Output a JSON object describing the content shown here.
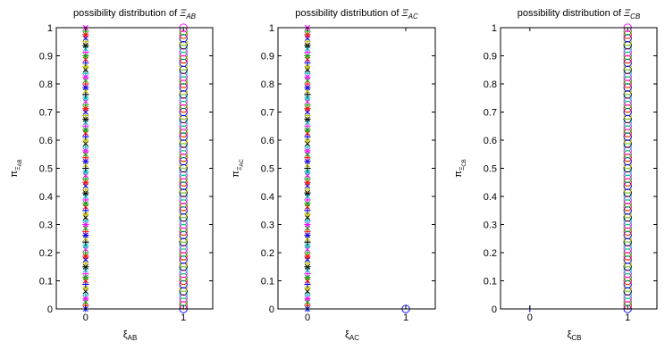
{
  "chart_data": [
    {
      "type": "scatter",
      "title_prefix": "possibility distribution of ",
      "title_symbol": "Ξ",
      "title_sub": "AB",
      "xlabel_symbol": "ξ",
      "xlabel_sub": "AB",
      "ylabel_symbol": "π",
      "ylabel_sub1": "Ξ",
      "ylabel_sub2": "AB",
      "xticks": [
        "0",
        "1"
      ],
      "yticks": [
        "0",
        "0.1",
        "0.2",
        "0.3",
        "0.4",
        "0.5",
        "0.6",
        "0.7",
        "0.8",
        "0.9",
        "1"
      ],
      "xlim": [
        -0.3,
        1.3
      ],
      "ylim": [
        0,
        1
      ],
      "grid": false,
      "series": [
        {
          "x": 0,
          "y_range": [
            0,
            1
          ],
          "marker": "mixed-star-plus-x",
          "colors": [
            "#0000ff",
            "#ff0000",
            "#00aa00",
            "#ff00ff",
            "#00bfbf",
            "#000000",
            "#bfbf00"
          ]
        },
        {
          "x": 1,
          "y_range": [
            0,
            1
          ],
          "marker": "circle",
          "colors": [
            "#0000ff",
            "#ff0000",
            "#00aa00",
            "#ff00ff",
            "#00bfbf",
            "#000000",
            "#bfbf00"
          ]
        }
      ]
    },
    {
      "type": "scatter",
      "title_prefix": "possibility distribution of ",
      "title_symbol": "Ξ",
      "title_sub": "AC",
      "xlabel_symbol": "ξ",
      "xlabel_sub": "AC",
      "ylabel_symbol": "π",
      "ylabel_sub1": "Ξ",
      "ylabel_sub2": "AC",
      "xticks": [
        "0",
        "1"
      ],
      "yticks": [
        "0",
        "0.1",
        "0.2",
        "0.3",
        "0.4",
        "0.5",
        "0.6",
        "0.7",
        "0.8",
        "0.9",
        "1"
      ],
      "xlim": [
        -0.3,
        1.3
      ],
      "ylim": [
        0,
        1
      ],
      "grid": false,
      "series": [
        {
          "x": 0,
          "y_range": [
            0,
            1
          ],
          "marker": "mixed-star-plus-x",
          "colors": [
            "#0000ff",
            "#ff0000",
            "#00aa00",
            "#ff00ff",
            "#00bfbf",
            "#000000",
            "#bfbf00"
          ]
        },
        {
          "x": 1,
          "y_values": [
            0
          ],
          "marker": "circle",
          "colors": [
            "#0000ff"
          ]
        }
      ]
    },
    {
      "type": "scatter",
      "title_prefix": "possibility distribution of ",
      "title_symbol": "Ξ",
      "title_sub": "CB",
      "xlabel_symbol": "ξ",
      "xlabel_sub": "CB",
      "ylabel_symbol": "π",
      "ylabel_sub1": "Ξ",
      "ylabel_sub2": "CB",
      "xticks": [
        "0",
        "1"
      ],
      "yticks": [
        "0",
        "0.1",
        "0.2",
        "0.3",
        "0.4",
        "0.5",
        "0.6",
        "0.7",
        "0.8",
        "0.9",
        "1"
      ],
      "xlim": [
        -0.3,
        1.3
      ],
      "ylim": [
        0,
        1
      ],
      "grid": false,
      "series": [
        {
          "x": 0,
          "y_values": [
            0
          ],
          "marker": "plus",
          "colors": [
            "#0000ff"
          ]
        },
        {
          "x": 1,
          "y_range": [
            0,
            1
          ],
          "marker": "circle",
          "colors": [
            "#0000ff",
            "#ff0000",
            "#00aa00",
            "#ff00ff",
            "#00bfbf",
            "#000000",
            "#bfbf00"
          ]
        }
      ]
    }
  ]
}
